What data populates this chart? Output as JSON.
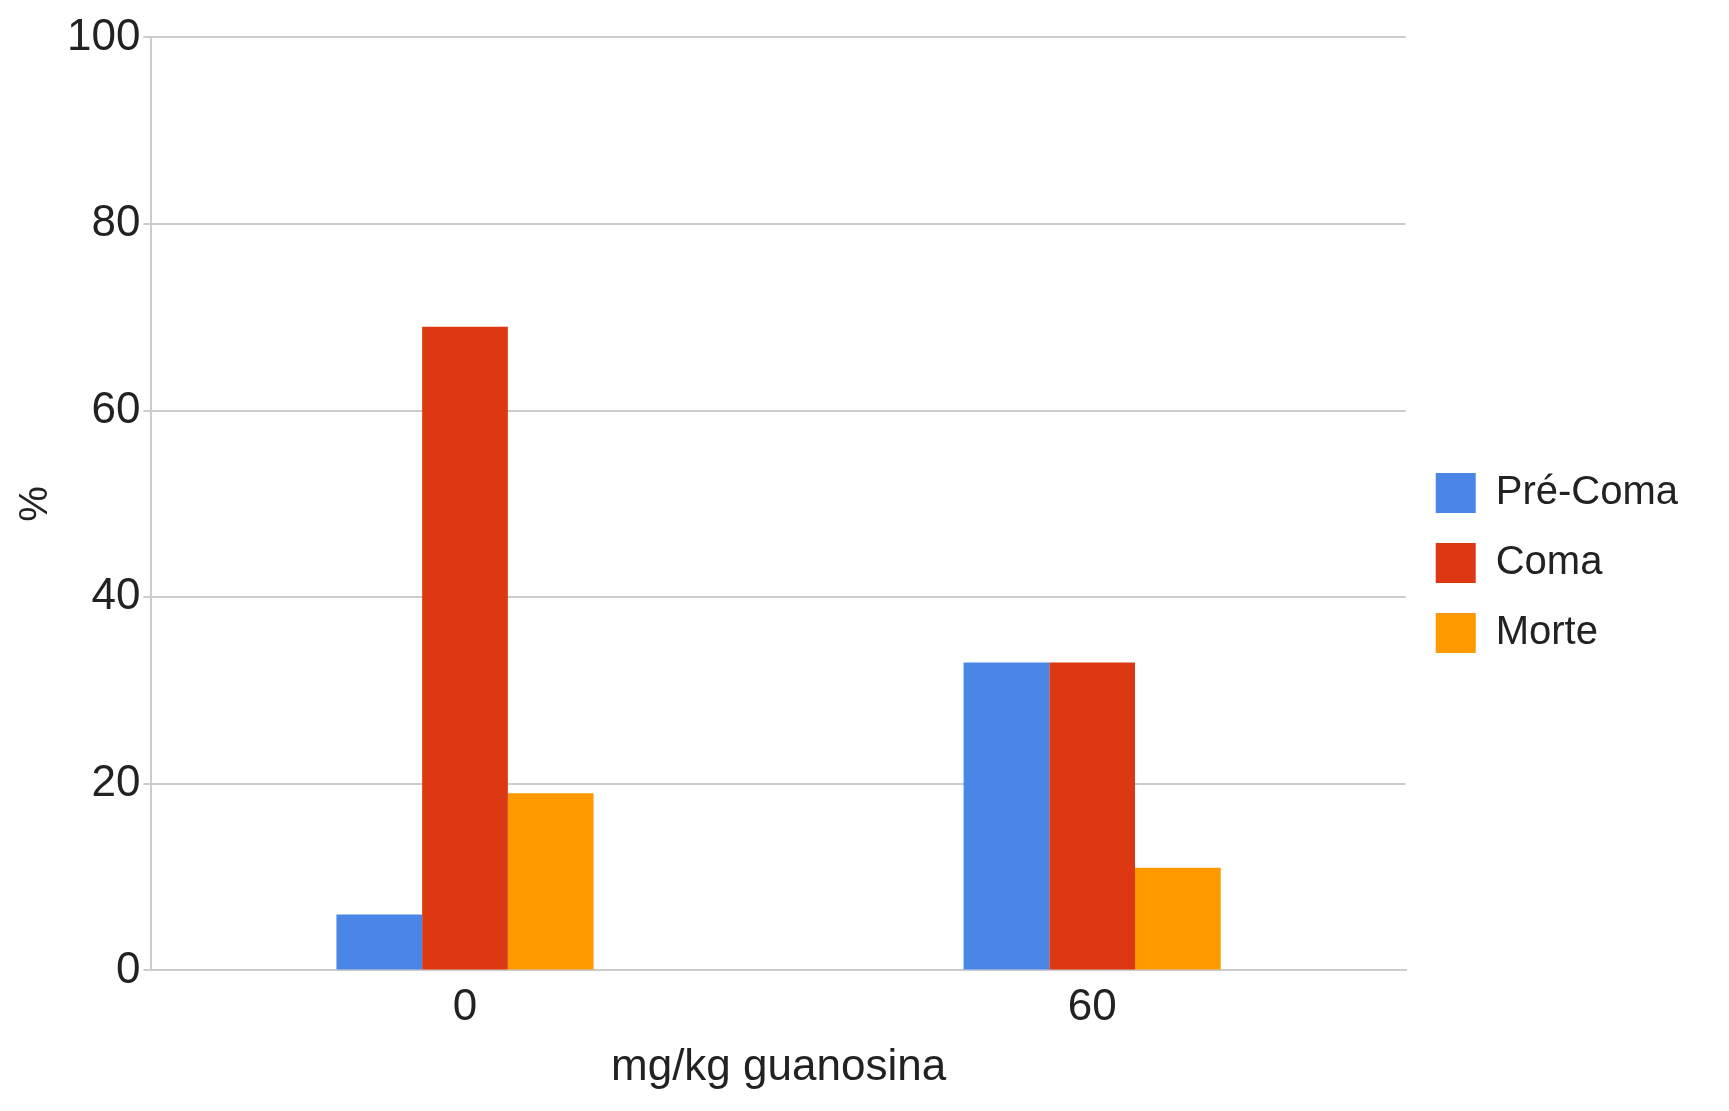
{
  "chart_data": {
    "type": "bar",
    "xlabel": "mg/kg guanosina",
    "ylabel": "%",
    "categories": [
      "0",
      "60"
    ],
    "series": [
      {
        "name": "Pré-Coma",
        "color": "#4a86e8",
        "values": [
          6,
          33
        ]
      },
      {
        "name": "Coma",
        "color": "#dc3912",
        "values": [
          69,
          33
        ]
      },
      {
        "name": "Morte",
        "color": "#ff9900",
        "values": [
          19,
          11
        ]
      }
    ],
    "ylim": [
      0,
      100
    ],
    "yticks": [
      0,
      20,
      40,
      60,
      80,
      100
    ],
    "grid": "y",
    "legend": "right"
  }
}
